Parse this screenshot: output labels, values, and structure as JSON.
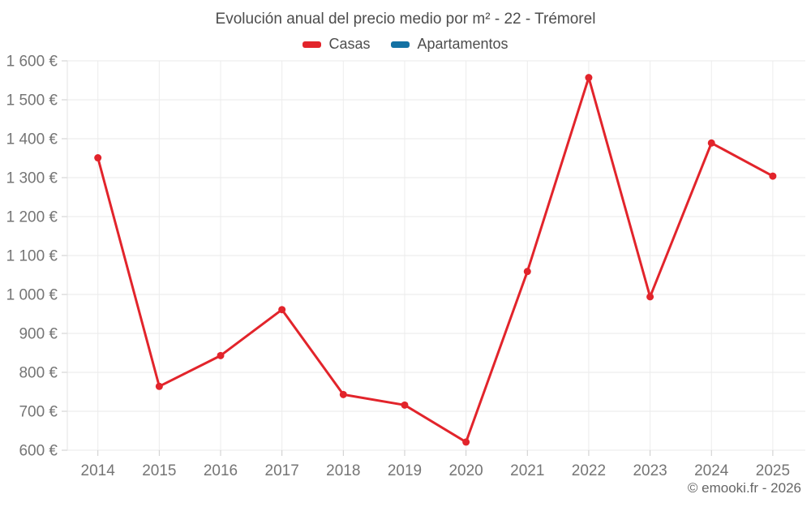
{
  "title": "Evolución anual del precio medio por m² - 22 - Trémorel",
  "legend": {
    "items": [
      {
        "label": "Casas",
        "color": "#e2242b"
      },
      {
        "label": "Apartamentos",
        "color": "#1371a3"
      }
    ]
  },
  "footer": {
    "credit": "© emooki.fr - 2026"
  },
  "chart_data": {
    "type": "line",
    "title": "Evolución anual del precio medio por m² - 22 - Trémorel",
    "categories": [
      "2014",
      "2015",
      "2016",
      "2017",
      "2018",
      "2019",
      "2020",
      "2021",
      "2022",
      "2023",
      "2024",
      "2025"
    ],
    "series": [
      {
        "name": "Casas",
        "color": "#e2242b",
        "values": [
          1351,
          764,
          843,
          961,
          743,
          716,
          621,
          1059,
          1557,
          994,
          1389,
          1304
        ]
      },
      {
        "name": "Apartamentos",
        "color": "#1371a3",
        "values": []
      }
    ],
    "ylim": [
      600,
      1600
    ],
    "ytick_step": 100,
    "yticks": [
      600,
      700,
      800,
      900,
      1000,
      1100,
      1200,
      1300,
      1400,
      1500,
      1600
    ],
    "ytick_labels": [
      "600 €",
      "700 €",
      "800 €",
      "900 €",
      "1 000 €",
      "1 100 €",
      "1 200 €",
      "1 300 €",
      "1 400 €",
      "1 500 €",
      "1 600 €"
    ],
    "ytick_suffix": " €",
    "xlabel": "",
    "ylabel": "",
    "grid": true,
    "legend_position": "top"
  }
}
